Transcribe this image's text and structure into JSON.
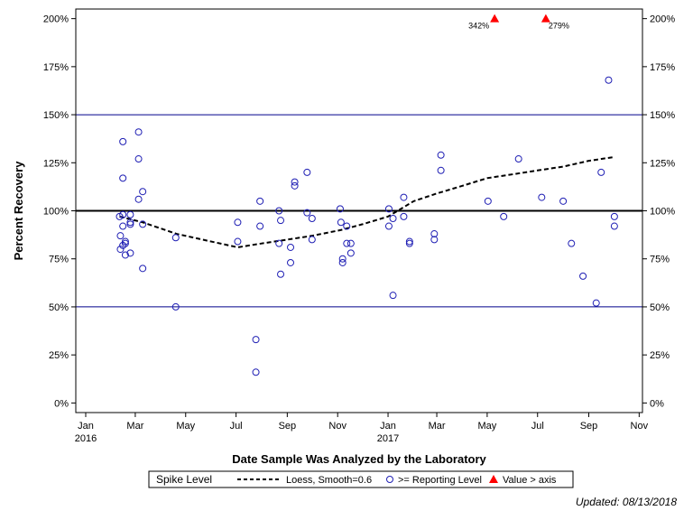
{
  "chart_data": {
    "type": "scatter",
    "xlabel": "Date Sample Was Analyzed by the Laboratory",
    "ylabel": "Percent Recovery",
    "x_ticks": [
      {
        "date": "2016-01-01",
        "label": "Jan",
        "sub": "2016"
      },
      {
        "date": "2016-03-01",
        "label": "Mar",
        "sub": ""
      },
      {
        "date": "2016-05-01",
        "label": "May",
        "sub": ""
      },
      {
        "date": "2016-07-01",
        "label": "Jul",
        "sub": ""
      },
      {
        "date": "2016-09-01",
        "label": "Sep",
        "sub": ""
      },
      {
        "date": "2016-11-01",
        "label": "Nov",
        "sub": ""
      },
      {
        "date": "2017-01-01",
        "label": "Jan",
        "sub": "2017"
      },
      {
        "date": "2017-03-01",
        "label": "Mar",
        "sub": ""
      },
      {
        "date": "2017-05-01",
        "label": "May",
        "sub": ""
      },
      {
        "date": "2017-07-01",
        "label": "Jul",
        "sub": ""
      },
      {
        "date": "2017-09-01",
        "label": "Sep",
        "sub": ""
      },
      {
        "date": "2017-11-01",
        "label": "Nov",
        "sub": ""
      }
    ],
    "xlim": [
      "2015-12-20",
      "2017-11-05"
    ],
    "ylim": [
      -5,
      205
    ],
    "y_ticks": [
      0,
      25,
      50,
      75,
      100,
      125,
      150,
      175,
      200
    ],
    "y_tick_labels": [
      "0%",
      "25%",
      "50%",
      "75%",
      "100%",
      "125%",
      "150%",
      "175%",
      "200%"
    ],
    "reference_lines": [
      {
        "y": 150,
        "color": "#00008B",
        "width": 1
      },
      {
        "y": 100,
        "color": "#000000",
        "width": 2
      },
      {
        "y": 50,
        "color": "#00008B",
        "width": 1
      }
    ],
    "series": [
      {
        "name": ">= Reporting Level",
        "marker": "circle",
        "color": "#1F1FB4",
        "points": [
          [
            "2016-02-11",
            97
          ],
          [
            "2016-02-12",
            87
          ],
          [
            "2016-02-12",
            80
          ],
          [
            "2016-02-15",
            136
          ],
          [
            "2016-02-15",
            117
          ],
          [
            "2016-02-15",
            98
          ],
          [
            "2016-02-15",
            92
          ],
          [
            "2016-02-15",
            82
          ],
          [
            "2016-02-18",
            84
          ],
          [
            "2016-02-18",
            83
          ],
          [
            "2016-02-18",
            77
          ],
          [
            "2016-02-24",
            98
          ],
          [
            "2016-02-24",
            94
          ],
          [
            "2016-02-24",
            93
          ],
          [
            "2016-02-24",
            78
          ],
          [
            "2016-03-05",
            141
          ],
          [
            "2016-03-05",
            127
          ],
          [
            "2016-03-05",
            106
          ],
          [
            "2016-03-10",
            110
          ],
          [
            "2016-03-10",
            93
          ],
          [
            "2016-03-10",
            70
          ],
          [
            "2016-04-19",
            86
          ],
          [
            "2016-04-19",
            50
          ],
          [
            "2016-07-03",
            94
          ],
          [
            "2016-07-03",
            84
          ],
          [
            "2016-07-25",
            33
          ],
          [
            "2016-07-25",
            16
          ],
          [
            "2016-07-30",
            105
          ],
          [
            "2016-07-30",
            92
          ],
          [
            "2016-08-22",
            100
          ],
          [
            "2016-08-22",
            83
          ],
          [
            "2016-08-24",
            95
          ],
          [
            "2016-08-24",
            67
          ],
          [
            "2016-09-05",
            81
          ],
          [
            "2016-09-05",
            73
          ],
          [
            "2016-09-10",
            115
          ],
          [
            "2016-09-10",
            113
          ],
          [
            "2016-09-25",
            120
          ],
          [
            "2016-09-25",
            99
          ],
          [
            "2016-10-01",
            96
          ],
          [
            "2016-10-01",
            85
          ],
          [
            "2016-11-04",
            101
          ],
          [
            "2016-11-05",
            94
          ],
          [
            "2016-11-07",
            75
          ],
          [
            "2016-11-07",
            73
          ],
          [
            "2016-11-12",
            92
          ],
          [
            "2016-11-12",
            83
          ],
          [
            "2016-11-17",
            83
          ],
          [
            "2016-11-17",
            78
          ],
          [
            "2017-01-02",
            101
          ],
          [
            "2017-01-02",
            92
          ],
          [
            "2017-01-07",
            96
          ],
          [
            "2017-01-07",
            56
          ],
          [
            "2017-01-20",
            107
          ],
          [
            "2017-01-20",
            97
          ],
          [
            "2017-01-27",
            84
          ],
          [
            "2017-01-27",
            83
          ],
          [
            "2017-02-26",
            88
          ],
          [
            "2017-02-26",
            85
          ],
          [
            "2017-03-06",
            129
          ],
          [
            "2017-03-06",
            121
          ],
          [
            "2017-05-02",
            105
          ],
          [
            "2017-05-21",
            97
          ],
          [
            "2017-06-08",
            127
          ],
          [
            "2017-07-06",
            107
          ],
          [
            "2017-08-01",
            105
          ],
          [
            "2017-08-11",
            83
          ],
          [
            "2017-08-25",
            66
          ],
          [
            "2017-09-10",
            52
          ],
          [
            "2017-09-16",
            120
          ],
          [
            "2017-09-25",
            168
          ],
          [
            "2017-10-02",
            97
          ],
          [
            "2017-10-02",
            92
          ]
        ]
      },
      {
        "name": "Loess, Smooth=0.6",
        "marker": "line",
        "style": "dashed",
        "color": "#000000",
        "points": [
          [
            "2016-02-11",
            97
          ],
          [
            "2016-03-10",
            94
          ],
          [
            "2016-04-20",
            88
          ],
          [
            "2016-06-01",
            84
          ],
          [
            "2016-07-03",
            81
          ],
          [
            "2016-08-01",
            83
          ],
          [
            "2016-09-01",
            85
          ],
          [
            "2016-10-01",
            87
          ],
          [
            "2016-11-05",
            90
          ],
          [
            "2016-12-01",
            93
          ],
          [
            "2017-01-01",
            97
          ],
          [
            "2017-02-01",
            105
          ],
          [
            "2017-03-01",
            109
          ],
          [
            "2017-04-01",
            113
          ],
          [
            "2017-05-01",
            117
          ],
          [
            "2017-06-01",
            119
          ],
          [
            "2017-07-01",
            121
          ],
          [
            "2017-08-01",
            123
          ],
          [
            "2017-09-01",
            126
          ],
          [
            "2017-10-02",
            128
          ]
        ]
      },
      {
        "name": "Value > axis",
        "marker": "triangle",
        "color": "#FF0000",
        "points": [
          [
            "2017-05-10",
            200,
            "342%"
          ],
          [
            "2017-07-11",
            200,
            "279%"
          ]
        ]
      }
    ],
    "legend": {
      "title": "Spike Level",
      "position": "bottom",
      "entries": [
        "Loess, Smooth=0.6",
        ">= Reporting Level",
        "Value > axis"
      ]
    },
    "grid": false
  },
  "footnote": "Updated: 08/13/2018"
}
